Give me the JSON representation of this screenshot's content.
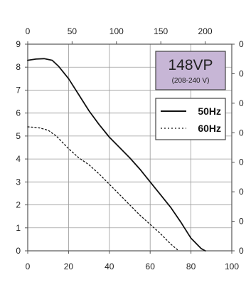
{
  "chart_data": {
    "type": "line",
    "title": "",
    "xlabel": "",
    "ylabel": "",
    "model_box": {
      "model": "148VP",
      "voltage": "(208-240 V)",
      "fill": "#c7b6d6"
    },
    "x_bottom": {
      "ticks": [
        "0",
        "20",
        "40",
        "60",
        "80",
        "100"
      ],
      "range": [
        0,
        100
      ]
    },
    "x_top": {
      "ticks": [
        "0",
        "50",
        "100",
        "150",
        "200"
      ],
      "range": [
        0,
        230
      ]
    },
    "y_left": {
      "ticks": [
        "0",
        "1",
        "2",
        "3",
        "4",
        "5",
        "6",
        "7",
        "8",
        "9"
      ],
      "range": [
        0,
        9
      ]
    },
    "y_right": {
      "ticks": [
        "0",
        "0",
        "0",
        "0",
        "0",
        "0",
        "0",
        "0"
      ]
    },
    "grid": true,
    "legend_position": "top-right",
    "series": [
      {
        "name": "50Hz",
        "style": "solid",
        "color": "#111111",
        "x": [
          0,
          4,
          8,
          12,
          15,
          20,
          25,
          30,
          35,
          40,
          45,
          50,
          55,
          60,
          65,
          70,
          75,
          80,
          85,
          87
        ],
        "y": [
          8.3,
          8.35,
          8.37,
          8.3,
          8.05,
          7.5,
          6.8,
          6.1,
          5.5,
          4.95,
          4.5,
          4.05,
          3.55,
          3.0,
          2.45,
          1.9,
          1.25,
          0.55,
          0.1,
          0.0
        ]
      },
      {
        "name": "60Hz",
        "style": "dotted",
        "color": "#111111",
        "x": [
          0,
          3,
          6,
          10,
          14,
          20,
          25,
          30,
          35,
          40,
          45,
          50,
          55,
          60,
          65,
          70,
          74
        ],
        "y": [
          5.4,
          5.38,
          5.35,
          5.25,
          5.0,
          4.45,
          4.05,
          3.75,
          3.35,
          2.9,
          2.45,
          2.0,
          1.55,
          1.15,
          0.75,
          0.3,
          0.0
        ]
      }
    ]
  }
}
